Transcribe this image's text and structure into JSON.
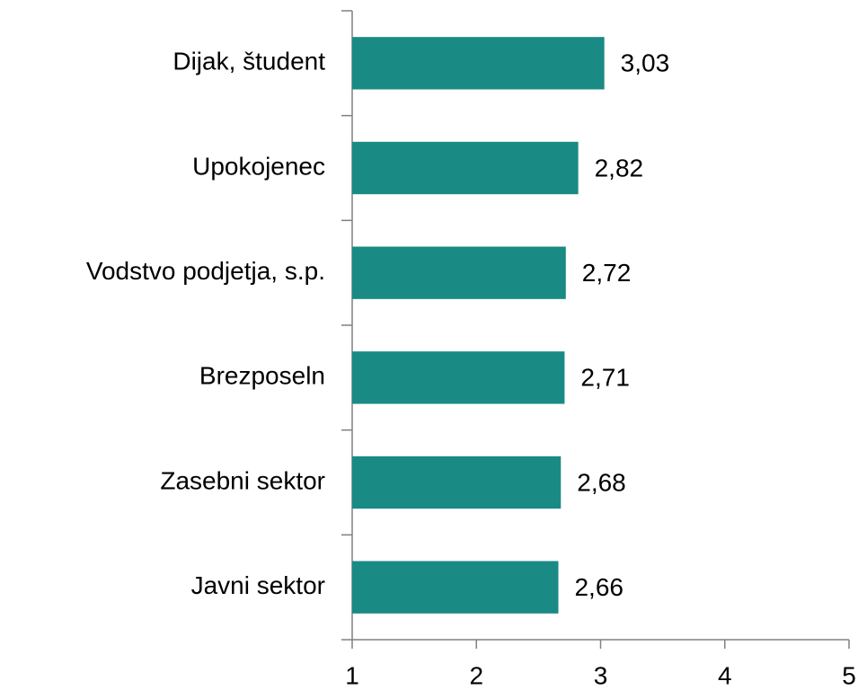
{
  "chart_data": {
    "type": "hbar",
    "categories": [
      "Dijak, študent",
      "Upokojenec",
      "Vodstvo podjetja, s.p.",
      "Brezposeln",
      "Zasebni sektor",
      "Javni sektor"
    ],
    "values": [
      3.03,
      2.82,
      2.72,
      2.71,
      2.68,
      2.66
    ],
    "value_labels": [
      "3,03",
      "2,82",
      "2,72",
      "2,71",
      "2,68",
      "2,66"
    ],
    "color": "#1a8a84",
    "xlim": [
      1,
      5
    ],
    "xticks": [
      1,
      2,
      3,
      4,
      5
    ],
    "grid": false
  }
}
